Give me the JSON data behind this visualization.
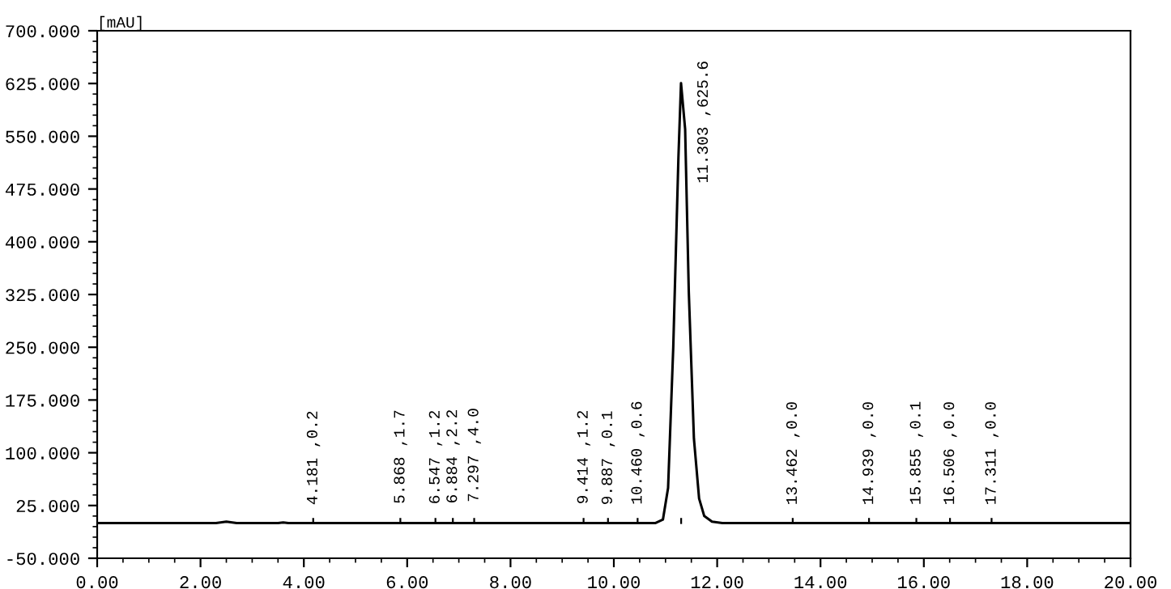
{
  "chart_data": {
    "type": "line",
    "ylabel": "[mAU]",
    "x": [
      0,
      2.3,
      2.5,
      2.7,
      3.5,
      3.6,
      3.7,
      10.8,
      10.95,
      11.05,
      11.15,
      11.25,
      11.3,
      11.38,
      11.45,
      11.55,
      11.65,
      11.75,
      11.9,
      12.1,
      20
    ],
    "series": [
      {
        "color": "#000000",
        "values": [
          0,
          0,
          2,
          0,
          0,
          1,
          0,
          0,
          5,
          50,
          250,
          520,
          625.6,
          560,
          330,
          120,
          35,
          10,
          2,
          0,
          0
        ]
      }
    ],
    "xlim": [
      0,
      20
    ],
    "xticks": [
      {
        "value": 0,
        "label": "0.00"
      },
      {
        "value": 2,
        "label": "2.00"
      },
      {
        "value": 4,
        "label": "4.00"
      },
      {
        "value": 6,
        "label": "6.00"
      },
      {
        "value": 8,
        "label": "8.00"
      },
      {
        "value": 10,
        "label": "10.00"
      },
      {
        "value": 12,
        "label": "12.00"
      },
      {
        "value": 14,
        "label": "14.00"
      },
      {
        "value": 16,
        "label": "16.00"
      },
      {
        "value": 18,
        "label": "18.00"
      },
      {
        "value": 20,
        "label": "20.00"
      }
    ],
    "ylim": [
      -50,
      700
    ],
    "yticks": [
      {
        "value": -50,
        "label": "-50.000"
      },
      {
        "value": 25,
        "label": "25.000"
      },
      {
        "value": 100,
        "label": "100.000"
      },
      {
        "value": 175,
        "label": "175.000"
      },
      {
        "value": 250,
        "label": "250.000"
      },
      {
        "value": 325,
        "label": "325.000"
      },
      {
        "value": 400,
        "label": "400.000"
      },
      {
        "value": 475,
        "label": "475.000"
      },
      {
        "value": 550,
        "label": "550.000"
      },
      {
        "value": 625,
        "label": "625.000"
      },
      {
        "value": 700,
        "label": "700.000"
      }
    ],
    "grid": false,
    "marker": "none",
    "line_style": "solid",
    "annotations": [
      {
        "text": "4.181 ,0.2",
        "x": 4.181,
        "y": 0.2
      },
      {
        "text": "5.868 ,1.7",
        "x": 5.868,
        "y": 1.7
      },
      {
        "text": "6.547 ,1.2",
        "x": 6.547,
        "y": 1.2
      },
      {
        "text": "6.884 ,2.2",
        "x": 6.884,
        "y": 2.2
      },
      {
        "text": "7.297 ,4.0",
        "x": 7.297,
        "y": 4.0
      },
      {
        "text": "9.414 ,1.2",
        "x": 9.414,
        "y": 1.2
      },
      {
        "text": "9.887 ,0.1",
        "x": 9.887,
        "y": 0.1
      },
      {
        "text": "10.460 ,0.6",
        "x": 10.46,
        "y": 0.6
      },
      {
        "text": "11.303 ,625.6",
        "x": 11.303,
        "y": 625.6
      },
      {
        "text": "13.462 ,0.0",
        "x": 13.462,
        "y": 0.0
      },
      {
        "text": "14.939 ,0.0",
        "x": 14.939,
        "y": 0.0
      },
      {
        "text": "15.855 ,0.1",
        "x": 15.855,
        "y": 0.1
      },
      {
        "text": "16.506 ,0.0",
        "x": 16.506,
        "y": 0.0
      },
      {
        "text": "17.311 ,0.0",
        "x": 17.311,
        "y": 0.0
      }
    ]
  }
}
